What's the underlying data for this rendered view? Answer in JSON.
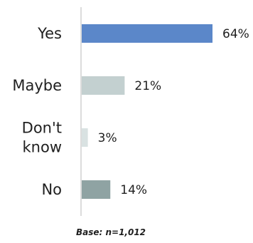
{
  "chart_data": {
    "type": "bar",
    "orientation": "horizontal",
    "categories": [
      [
        "Yes"
      ],
      [
        "Maybe"
      ],
      [
        "Don't",
        "know"
      ],
      [
        "No"
      ]
    ],
    "values": [
      64,
      21,
      3,
      14
    ],
    "value_labels": [
      "64%",
      "21%",
      "3%",
      "14%"
    ],
    "unit": "%",
    "xlim": [
      0,
      100
    ],
    "grid": false,
    "legend": "none",
    "colors": [
      "#5b87c9",
      "#c3d0d0",
      "#d9e2e2",
      "#8fa3a3"
    ],
    "annotation": "Base: n=1,012"
  }
}
